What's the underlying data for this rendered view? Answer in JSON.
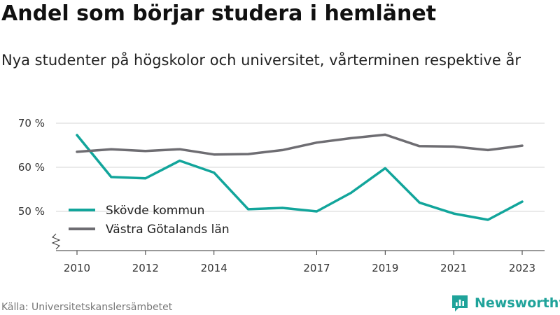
{
  "header": {
    "title": "Andel som börjar studera i hemlänet",
    "subtitle": "Nya studenter på högskolor och universitet, vårterminen respektive år"
  },
  "footer": {
    "source": "Källa: Universitetskanslersämbetet",
    "brand": "Newsworthy"
  },
  "colors": {
    "skovde": "#12a59b",
    "vastra": "#6e6d72",
    "brand": "#1fa39a"
  },
  "chart_data": {
    "type": "line",
    "title": "Andel som börjar studera i hemlänet",
    "subtitle": "Nya studenter på högskolor och universitet, vårterminen respektive år",
    "xlabel": "",
    "ylabel": "",
    "x": [
      2010,
      2011,
      2012,
      2013,
      2014,
      2015,
      2016,
      2017,
      2018,
      2019,
      2020,
      2021,
      2022,
      2023
    ],
    "x_tick_labels": [
      "2010",
      "2012",
      "2014",
      "2017",
      "2019",
      "2021",
      "2023"
    ],
    "y_ticks": [
      50,
      60,
      70
    ],
    "y_tick_labels": [
      "50 %",
      "60 %",
      "70 %"
    ],
    "ylim": [
      41,
      72
    ],
    "axis_break": true,
    "grid": true,
    "legend_position": "left-inside",
    "series": [
      {
        "name": "Skövde kommun",
        "color": "#12a59b",
        "values": [
          67.3,
          57.8,
          57.5,
          61.5,
          58.8,
          50.5,
          50.8,
          50.0,
          54.2,
          59.8,
          52.0,
          49.5,
          48.1,
          52.2
        ]
      },
      {
        "name": "Västra Götalands län",
        "color": "#6e6d72",
        "values": [
          63.5,
          64.1,
          63.7,
          64.1,
          62.9,
          63.0,
          63.9,
          65.6,
          66.6,
          67.4,
          64.8,
          64.7,
          63.9,
          64.9
        ]
      }
    ]
  }
}
